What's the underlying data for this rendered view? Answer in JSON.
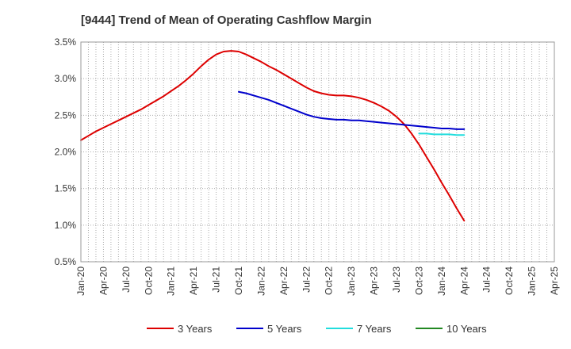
{
  "chart_data": {
    "type": "line",
    "title": "[9444]  Trend of Mean of Operating Cashflow Margin",
    "xlabel": "",
    "ylabel": "",
    "x_ticks": [
      "Jan-20",
      "Apr-20",
      "Jul-20",
      "Oct-20",
      "Jan-21",
      "Apr-21",
      "Jul-21",
      "Oct-21",
      "Jan-22",
      "Apr-22",
      "Jul-22",
      "Oct-22",
      "Jan-23",
      "Apr-23",
      "Jul-23",
      "Oct-23",
      "Jan-24",
      "Apr-24",
      "Jul-24",
      "Oct-24",
      "Jan-25",
      "Apr-25"
    ],
    "y_ticks": [
      "3.5%",
      "3.0%",
      "2.5%",
      "2.0%",
      "1.5%",
      "1.0%",
      "0.5%"
    ],
    "ylim": [
      0.5,
      3.5
    ],
    "grid": true,
    "legend_position": "bottom",
    "series": [
      {
        "name": "3 Years",
        "color": "#dd0000",
        "x": [
          "Jan-20",
          "Feb-20",
          "Mar-20",
          "Apr-20",
          "May-20",
          "Jun-20",
          "Jul-20",
          "Aug-20",
          "Sep-20",
          "Oct-20",
          "Nov-20",
          "Dec-20",
          "Jan-21",
          "Feb-21",
          "Mar-21",
          "Apr-21",
          "May-21",
          "Jun-21",
          "Jul-21",
          "Aug-21",
          "Sep-21",
          "Oct-21",
          "Nov-21",
          "Dec-21",
          "Jan-22",
          "Feb-22",
          "Mar-22",
          "Apr-22",
          "May-22",
          "Jun-22",
          "Jul-22",
          "Aug-22",
          "Sep-22",
          "Oct-22",
          "Nov-22",
          "Dec-22",
          "Jan-23",
          "Feb-23",
          "Mar-23",
          "Apr-23",
          "May-23",
          "Jun-23",
          "Jul-23",
          "Aug-23",
          "Sep-23",
          "Oct-23",
          "Nov-23",
          "Dec-23",
          "Jan-24",
          "Feb-24",
          "Mar-24",
          "Apr-24"
        ],
        "values": [
          2.16,
          2.22,
          2.28,
          2.33,
          2.38,
          2.43,
          2.48,
          2.53,
          2.58,
          2.64,
          2.7,
          2.76,
          2.83,
          2.9,
          2.98,
          3.07,
          3.17,
          3.26,
          3.33,
          3.37,
          3.38,
          3.37,
          3.33,
          3.28,
          3.23,
          3.17,
          3.12,
          3.06,
          3.0,
          2.94,
          2.88,
          2.83,
          2.8,
          2.78,
          2.77,
          2.77,
          2.76,
          2.74,
          2.71,
          2.67,
          2.62,
          2.56,
          2.48,
          2.38,
          2.25,
          2.1,
          1.93,
          1.76,
          1.58,
          1.41,
          1.23,
          1.06
        ]
      },
      {
        "name": "5 Years",
        "color": "#0000cc",
        "x": [
          "Oct-21",
          "Nov-21",
          "Dec-21",
          "Jan-22",
          "Feb-22",
          "Mar-22",
          "Apr-22",
          "May-22",
          "Jun-22",
          "Jul-22",
          "Aug-22",
          "Sep-22",
          "Oct-22",
          "Nov-22",
          "Dec-22",
          "Jan-23",
          "Feb-23",
          "Mar-23",
          "Apr-23",
          "May-23",
          "Jun-23",
          "Jul-23",
          "Aug-23",
          "Sep-23",
          "Oct-23",
          "Nov-23",
          "Dec-23",
          "Jan-24",
          "Feb-24",
          "Mar-24",
          "Apr-24"
        ],
        "values": [
          2.82,
          2.8,
          2.77,
          2.74,
          2.71,
          2.67,
          2.63,
          2.59,
          2.55,
          2.51,
          2.48,
          2.46,
          2.45,
          2.44,
          2.44,
          2.43,
          2.43,
          2.42,
          2.41,
          2.4,
          2.39,
          2.38,
          2.37,
          2.36,
          2.35,
          2.34,
          2.33,
          2.32,
          2.32,
          2.31,
          2.31
        ]
      },
      {
        "name": "7 Years",
        "color": "#22dddd",
        "x": [
          "Oct-23",
          "Nov-23",
          "Dec-23",
          "Jan-24",
          "Feb-24",
          "Mar-24",
          "Apr-24"
        ],
        "values": [
          2.25,
          2.25,
          2.24,
          2.24,
          2.24,
          2.23,
          2.23
        ]
      },
      {
        "name": "10 Years",
        "color": "#228822",
        "x": [],
        "values": []
      }
    ]
  }
}
